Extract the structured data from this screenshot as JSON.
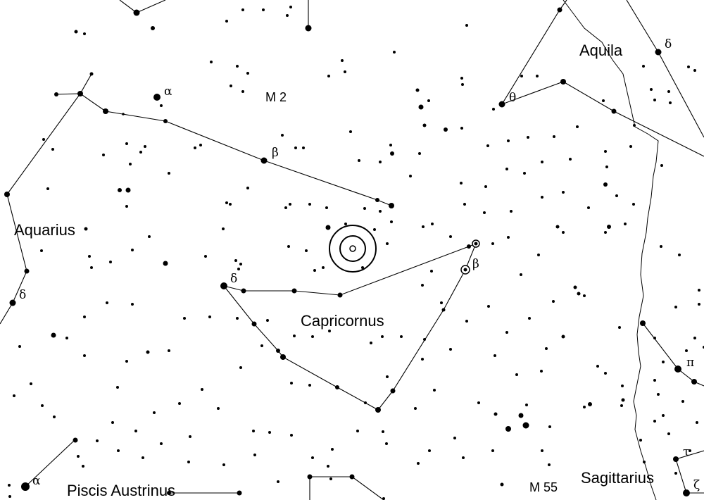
{
  "constellations": [
    {
      "key": "aquarius",
      "name": "Aquarius"
    },
    {
      "key": "capricornus",
      "name": "Capricornus"
    },
    {
      "key": "aquila",
      "name": "Aquila"
    },
    {
      "key": "sagittarius",
      "name": "Sagittarius"
    },
    {
      "key": "piscis-austrinus",
      "name": "Piscis Austrinus"
    }
  ],
  "deep_sky": [
    {
      "key": "m2",
      "name": "M 2"
    },
    {
      "key": "m55",
      "name": "M 55"
    }
  ],
  "star_labels": [
    {
      "key": "aqr-alpha",
      "letter": "α"
    },
    {
      "key": "aqr-beta",
      "letter": "β"
    },
    {
      "key": "aqr-delta",
      "letter": "δ"
    },
    {
      "key": "cap-delta",
      "letter": "δ"
    },
    {
      "key": "cap-beta",
      "letter": "β"
    },
    {
      "key": "aql-theta",
      "letter": "θ"
    },
    {
      "key": "aql-delta",
      "letter": "δ"
    },
    {
      "key": "sgr-pi",
      "letter": "π"
    },
    {
      "key": "sgr-tau",
      "letter": "τ"
    },
    {
      "key": "sgr-zeta",
      "letter": "ζ"
    },
    {
      "key": "psa-alpha",
      "letter": "α"
    }
  ],
  "target_marker": {
    "name": "target"
  }
}
